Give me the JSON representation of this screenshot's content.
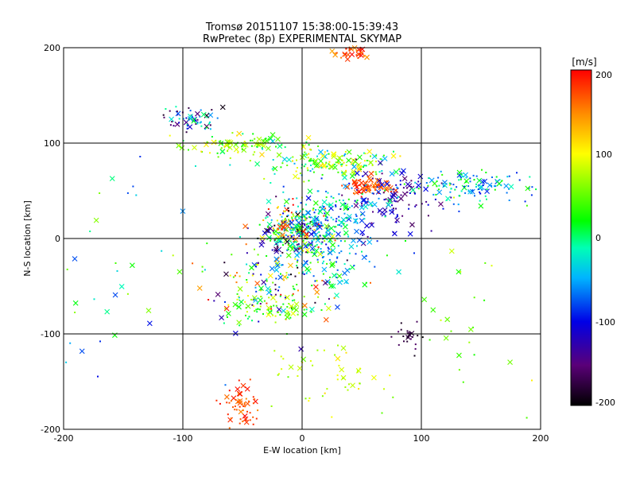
{
  "chart_data": {
    "type": "scatter",
    "title": "Tromsø 20151107 15:38:00-15:39:43",
    "subtitle": "RwPretec (8p) EXPERIMENTAL SKYMAP",
    "xlabel": "E-W location [km]",
    "ylabel": "N-S location [km]",
    "xlim": [
      -200,
      200
    ],
    "ylim": [
      -200,
      200
    ],
    "xticks": [
      "-200",
      "-100",
      "0",
      "100",
      "200"
    ],
    "yticks": [
      "-200",
      "-100",
      "0",
      "100",
      "200"
    ],
    "grid": true,
    "colorbar": {
      "label": "[m/s]",
      "range": [
        -200,
        200
      ],
      "ticks": [
        "200",
        "100",
        "0",
        "-100",
        "-200"
      ],
      "colormap": "black-purple-blue-cyan-green-yellow-orange-red"
    },
    "marker_types": [
      "dot",
      "cross"
    ],
    "clusters": [
      {
        "cx": -95,
        "cy": 125,
        "sx": 12,
        "sy": 6,
        "n": 60,
        "vmin": -200,
        "vmax": 0
      },
      {
        "cx": -50,
        "cy": 100,
        "sx": 28,
        "sy": 5,
        "n": 90,
        "vmin": -20,
        "vmax": 120
      },
      {
        "cx": 25,
        "cy": 80,
        "sx": 25,
        "sy": 8,
        "n": 160,
        "vmin": -60,
        "vmax": 120
      },
      {
        "cx": 55,
        "cy": 55,
        "sx": 10,
        "sy": 5,
        "n": 70,
        "vmin": 150,
        "vmax": 200
      },
      {
        "cx": 75,
        "cy": 40,
        "sx": 20,
        "sy": 15,
        "n": 110,
        "vmin": -160,
        "vmax": -90
      },
      {
        "cx": 140,
        "cy": 55,
        "sx": 25,
        "sy": 8,
        "n": 120,
        "vmin": -100,
        "vmax": 20
      },
      {
        "cx": -5,
        "cy": 10,
        "sx": 15,
        "sy": 12,
        "n": 260,
        "vmin": -200,
        "vmax": 200
      },
      {
        "cx": 15,
        "cy": -5,
        "sx": 20,
        "sy": 30,
        "n": 200,
        "vmin": -90,
        "vmax": 20
      },
      {
        "cx": -20,
        "cy": -40,
        "sx": 30,
        "sy": 25,
        "n": 160,
        "vmin": -200,
        "vmax": 200
      },
      {
        "cx": -25,
        "cy": -75,
        "sx": 20,
        "sy": 8,
        "n": 80,
        "vmin": -20,
        "vmax": 100
      },
      {
        "cx": -50,
        "cy": -175,
        "sx": 8,
        "sy": 10,
        "n": 60,
        "vmin": 150,
        "vmax": 200
      },
      {
        "cx": 40,
        "cy": 195,
        "sx": 10,
        "sy": 4,
        "n": 40,
        "vmin": 140,
        "vmax": 200
      },
      {
        "cx": 20,
        "cy": -150,
        "sx": 25,
        "sy": 25,
        "n": 50,
        "vmin": 40,
        "vmax": 120
      },
      {
        "cx": 90,
        "cy": -100,
        "sx": 6,
        "sy": 10,
        "n": 25,
        "vmin": -200,
        "vmax": -150
      },
      {
        "cx": -160,
        "cy": -50,
        "sx": 30,
        "sy": 60,
        "n": 40,
        "vmin": -100,
        "vmax": 60
      },
      {
        "cx": 130,
        "cy": -80,
        "sx": 30,
        "sy": 60,
        "n": 30,
        "vmin": 0,
        "vmax": 110
      },
      {
        "cx": 30,
        "cy": 30,
        "sx": 25,
        "sy": 15,
        "n": 90,
        "vmin": -100,
        "vmax": 0
      }
    ]
  }
}
